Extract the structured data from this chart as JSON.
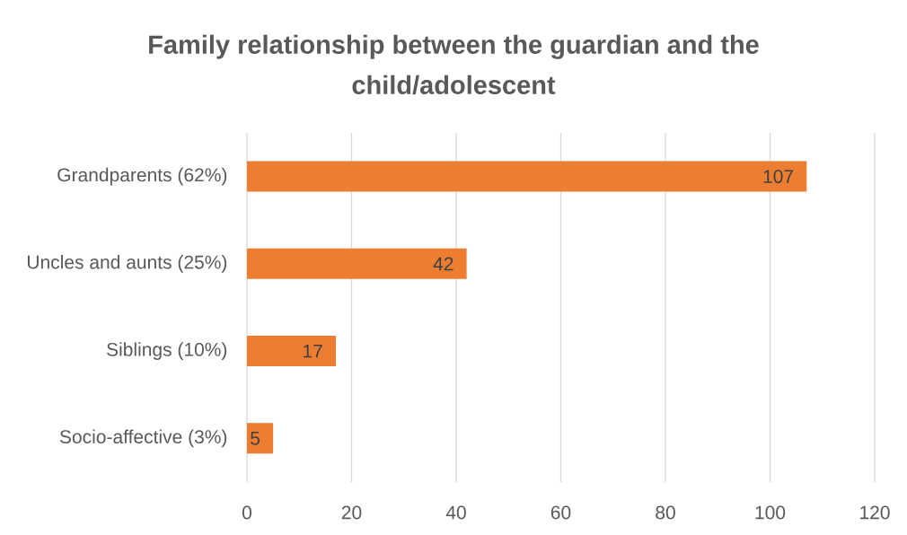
{
  "chart_data": {
    "type": "bar",
    "orientation": "horizontal",
    "title": "Family relationship between the guardian and the child/adolescent",
    "categories": [
      "Grandparents (62%)",
      "Uncles and aunts (25%)",
      "Siblings (10%)",
      "Socio-affective (3%)"
    ],
    "values": [
      107,
      42,
      17,
      5
    ],
    "color": "#ed7d31",
    "xlim": [
      0,
      120
    ],
    "xticks": [
      0,
      20,
      40,
      60,
      80,
      100,
      120
    ],
    "grid": "x",
    "data_labels": true
  }
}
